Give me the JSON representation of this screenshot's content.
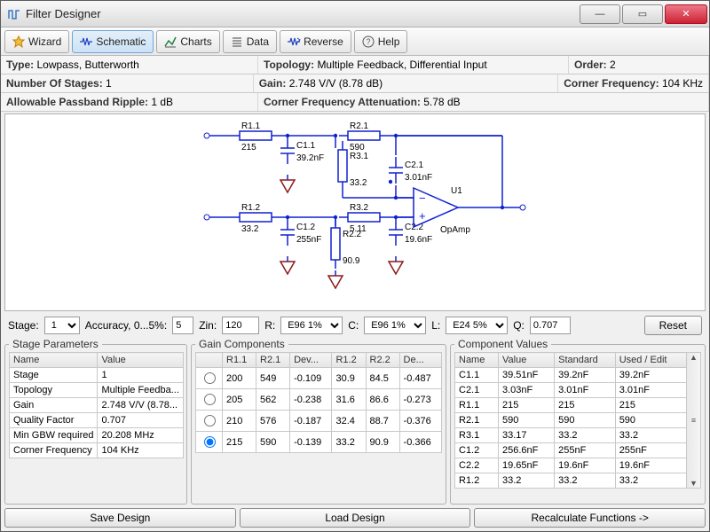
{
  "window": {
    "title": "Filter Designer"
  },
  "toolbar": {
    "wizard": "Wizard",
    "schematic": "Schematic",
    "charts": "Charts",
    "data": "Data",
    "reverse": "Reverse",
    "help": "Help"
  },
  "props": {
    "type_label": "Type:",
    "type_value": "Lowpass, Butterworth",
    "topology_label": "Topology:",
    "topology_value": "Multiple Feedback, Differential Input",
    "order_label": "Order:",
    "order_value": "2",
    "stages_label": "Number Of Stages:",
    "stages_value": "1",
    "gain_label": "Gain:",
    "gain_value": "2.748 V/V (8.78 dB)",
    "corner_label": "Corner Frequency:",
    "corner_value": "104 KHz",
    "ripple_label": "Allowable Passband Ripple:",
    "ripple_value": "1 dB",
    "atten_label": "Corner Frequency Attenuation:",
    "atten_value": "5.78 dB"
  },
  "schematic": {
    "wire_color": "#1020d0",
    "gnd_color": "#8b1a1a",
    "text_color": "#000000",
    "components": {
      "R11": {
        "name": "R1.1",
        "value": "215"
      },
      "C11": {
        "name": "C1.1",
        "value": "39.2nF"
      },
      "R21": {
        "name": "R2.1",
        "value": "590"
      },
      "R31": {
        "name": "R3.1",
        "value": "33.2"
      },
      "C21": {
        "name": "C2.1",
        "value": "3.01nF"
      },
      "R12": {
        "name": "R1.2",
        "value": "33.2"
      },
      "C12": {
        "name": "C1.2",
        "value": "255nF"
      },
      "R32": {
        "name": "R3.2",
        "value": "5.11"
      },
      "R22": {
        "name": "R2.2",
        "value": "90.9"
      },
      "C22": {
        "name": "C2.2",
        "value": "19.6nF"
      },
      "U1": {
        "name": "U1",
        "value": "OpAmp"
      }
    }
  },
  "stagebar": {
    "stage_label": "Stage:",
    "stage_value": "1",
    "accuracy_label": "Accuracy, 0...5%:",
    "accuracy_value": "5",
    "zin_label": "Zin:",
    "zin_value": "120",
    "r_label": "R:",
    "r_value": "E96 1%",
    "c_label": "C:",
    "c_value": "E96 1%",
    "l_label": "L:",
    "l_value": "E24 5%",
    "q_label": "Q:",
    "q_value": "0.707",
    "reset": "Reset"
  },
  "stage_params": {
    "legend": "Stage Parameters",
    "cols": [
      "Name",
      "Value"
    ],
    "rows": [
      [
        "Stage",
        "1"
      ],
      [
        "Topology",
        "Multiple Feedba..."
      ],
      [
        "Gain",
        "2.748 V/V (8.78..."
      ],
      [
        "Quality Factor",
        "0.707"
      ],
      [
        "Min GBW required",
        "20.208 MHz"
      ],
      [
        "Corner Frequency",
        "104 KHz"
      ]
    ]
  },
  "gain_components": {
    "legend": "Gain Components",
    "cols": [
      "",
      "R1.1",
      "R2.1",
      "Dev...",
      "R1.2",
      "R2.2",
      "De..."
    ],
    "rows": [
      [
        "200",
        "549",
        "-0.109",
        "30.9",
        "84.5",
        "-0.487"
      ],
      [
        "205",
        "562",
        "-0.238",
        "31.6",
        "86.6",
        "-0.273"
      ],
      [
        "210",
        "576",
        "-0.187",
        "32.4",
        "88.7",
        "-0.376"
      ],
      [
        "215",
        "590",
        "-0.139",
        "33.2",
        "90.9",
        "-0.366"
      ]
    ],
    "selected_index": 3
  },
  "component_values": {
    "legend": "Component Values",
    "cols": [
      "Name",
      "Value",
      "Standard",
      "Used / Edit"
    ],
    "rows": [
      [
        "C1.1",
        "39.51nF",
        "39.2nF",
        "39.2nF"
      ],
      [
        "C2.1",
        "3.03nF",
        "3.01nF",
        "3.01nF"
      ],
      [
        "R1.1",
        "215",
        "215",
        "215"
      ],
      [
        "R2.1",
        "590",
        "590",
        "590"
      ],
      [
        "R3.1",
        "33.17",
        "33.2",
        "33.2"
      ],
      [
        "C1.2",
        "256.6nF",
        "255nF",
        "255nF"
      ],
      [
        "C2.2",
        "19.65nF",
        "19.6nF",
        "19.6nF"
      ],
      [
        "R1.2",
        "33.2",
        "33.2",
        "33.2"
      ]
    ]
  },
  "footer": {
    "save": "Save Design",
    "load": "Load Design",
    "recalc": "Recalculate Functions ->"
  }
}
